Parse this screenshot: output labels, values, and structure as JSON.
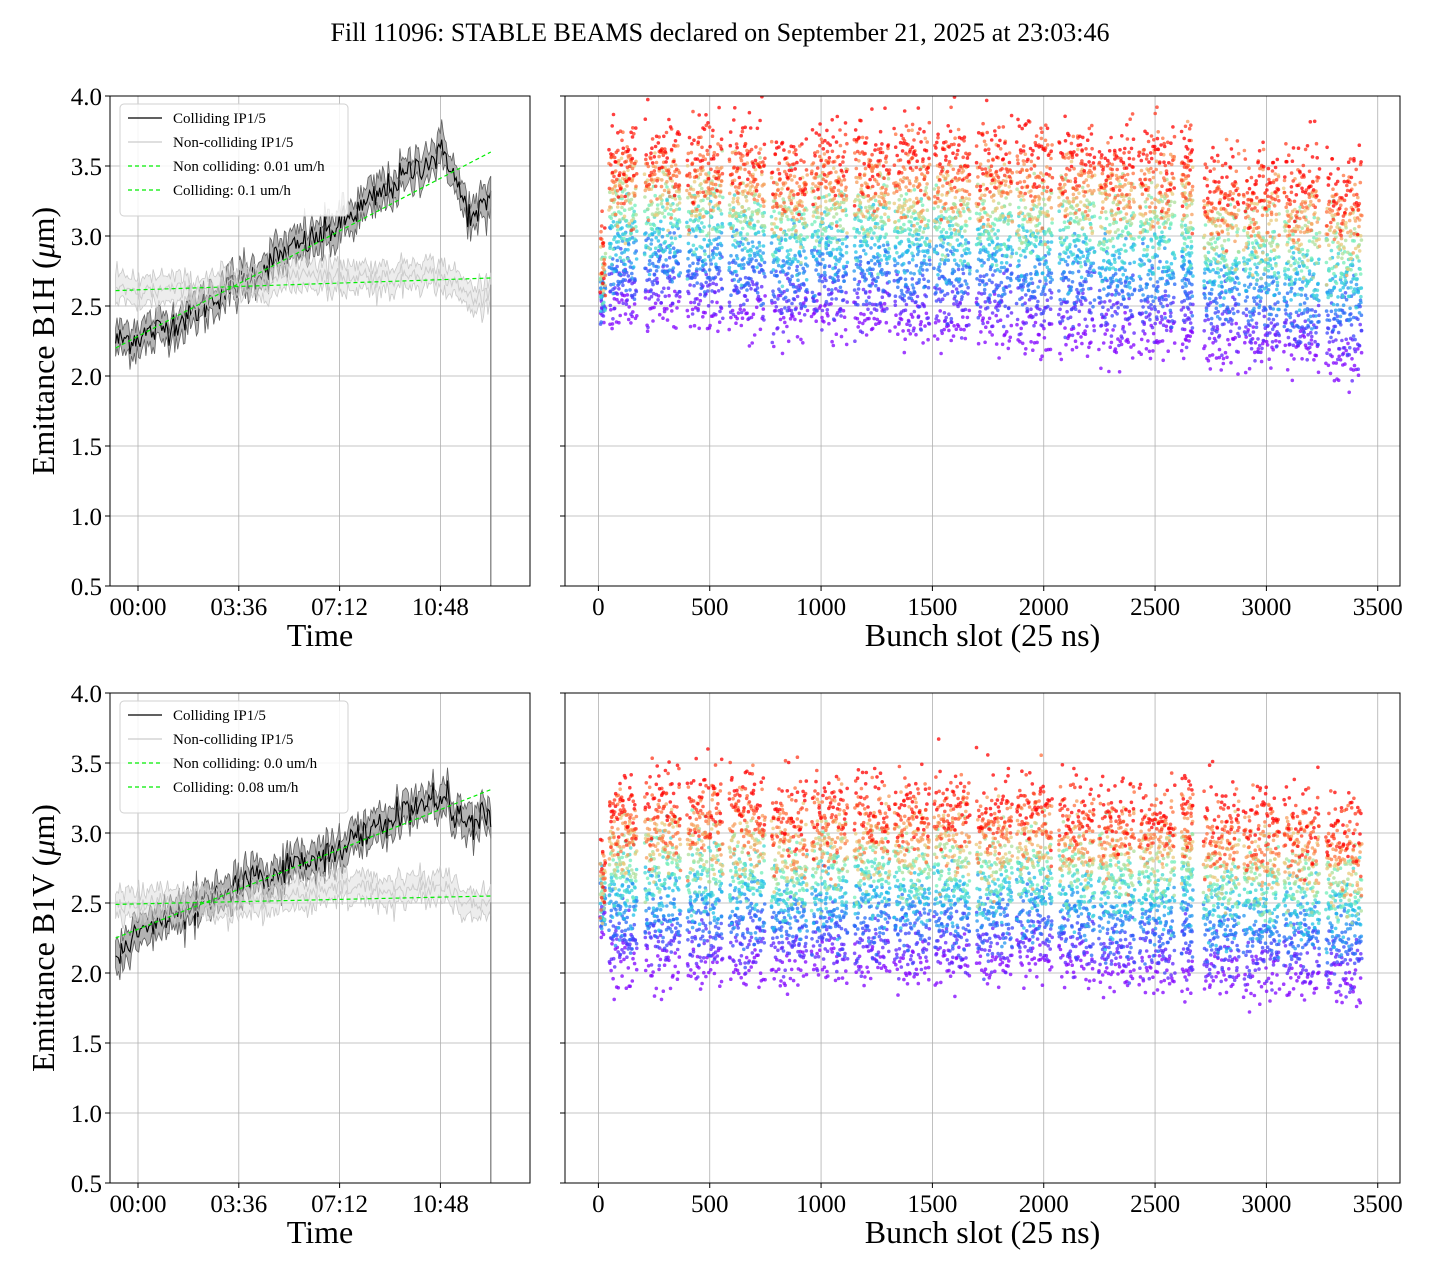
{
  "figure": {
    "title": "Fill 11096: STABLE BEAMS declared on September 21, 2025 at 23:03:46"
  },
  "chart_data": [
    {
      "id": "b1h-time",
      "type": "line",
      "xlabel": "Time",
      "ylabel": "Emittance B1H (μm)",
      "ylabel_base": "Emittance B1H (",
      "ylabel_unit_symbol": "μ",
      "ylabel_unit_rest": "m)",
      "x_unit": "hours",
      "xlim": [
        -1.0,
        14.0
      ],
      "ylim": [
        0.5,
        4.0
      ],
      "xticks": [
        0,
        3.6,
        7.2,
        10.8
      ],
      "xtick_labels": [
        "00:00",
        "03:36",
        "07:12",
        "10:48"
      ],
      "yticks": [
        0.5,
        1.0,
        1.5,
        2.0,
        2.5,
        3.0,
        3.5,
        4.0
      ],
      "ytick_labels": [
        "0.5",
        "1.0",
        "1.5",
        "2.0",
        "2.5",
        "3.0",
        "3.5",
        "4.0"
      ],
      "grid": true,
      "legend_position": "top-left",
      "series": [
        {
          "name": "Colliding IP1/5",
          "color": "#000000",
          "style": "solid",
          "band": true,
          "x": [
            -0.8,
            0,
            1,
            2,
            3,
            4,
            5,
            6,
            7,
            8,
            9,
            10,
            11,
            11.5,
            12,
            12.6
          ],
          "y": [
            2.25,
            2.28,
            2.35,
            2.45,
            2.6,
            2.7,
            2.85,
            2.95,
            3.05,
            3.2,
            3.35,
            3.5,
            3.6,
            3.3,
            3.1,
            3.3
          ]
        },
        {
          "name": "Non-colliding IP1/5",
          "color": "#cccccc",
          "style": "solid",
          "band": true,
          "x": [
            -0.8,
            0,
            1,
            2,
            3,
            4,
            5,
            6,
            7,
            8,
            9,
            10,
            11,
            12,
            12.6
          ],
          "y": [
            2.6,
            2.6,
            2.62,
            2.6,
            2.65,
            2.65,
            2.7,
            2.75,
            2.7,
            2.72,
            2.7,
            2.75,
            2.7,
            2.55,
            2.6
          ]
        },
        {
          "name": "Non colliding: 0.01 um/h",
          "color": "#00ee00",
          "style": "dashed",
          "band": false,
          "x": [
            -0.8,
            12.6
          ],
          "y": [
            2.61,
            2.7
          ]
        },
        {
          "name": "Colliding: 0.1 um/h",
          "color": "#00ee00",
          "style": "dashed",
          "band": false,
          "x": [
            -0.8,
            12.6
          ],
          "y": [
            2.2,
            3.6
          ]
        }
      ]
    },
    {
      "id": "b1h-bunch",
      "type": "scatter",
      "xlabel": "Bunch slot (25 ns)",
      "ylabel": "",
      "xlim": [
        -150,
        3600
      ],
      "ylim": [
        0.5,
        4.0
      ],
      "xticks": [
        0,
        500,
        1000,
        1500,
        2000,
        2500,
        3000,
        3500
      ],
      "xtick_labels": [
        "0",
        "500",
        "1000",
        "1500",
        "2000",
        "2500",
        "3000",
        "3500"
      ],
      "yticks": [
        0.5,
        1.0,
        1.5,
        2.0,
        2.5,
        3.0,
        3.5,
        4.0
      ],
      "grid": true,
      "color_scale": "rainbow (purple = start of fill, red = end of fill)",
      "trains": [
        {
          "start": 10,
          "end": 30,
          "emittance_start": 2.4,
          "emittance_end": 2.9
        },
        {
          "start": 50,
          "end": 170,
          "emittance_start": 2.45,
          "emittance_end": 3.6
        },
        {
          "start": 210,
          "end": 370,
          "emittance_start": 2.5,
          "emittance_end": 3.6
        },
        {
          "start": 400,
          "end": 560,
          "emittance_start": 2.45,
          "emittance_end": 3.6
        },
        {
          "start": 590,
          "end": 750,
          "emittance_start": 2.45,
          "emittance_end": 3.6
        },
        {
          "start": 780,
          "end": 940,
          "emittance_start": 2.4,
          "emittance_end": 3.5
        },
        {
          "start": 960,
          "end": 1120,
          "emittance_start": 2.4,
          "emittance_end": 3.6
        },
        {
          "start": 1150,
          "end": 1310,
          "emittance_start": 2.4,
          "emittance_end": 3.6
        },
        {
          "start": 1330,
          "end": 1490,
          "emittance_start": 2.35,
          "emittance_end": 3.6
        },
        {
          "start": 1510,
          "end": 1670,
          "emittance_start": 2.35,
          "emittance_end": 3.6
        },
        {
          "start": 1700,
          "end": 1860,
          "emittance_start": 2.35,
          "emittance_end": 3.6
        },
        {
          "start": 1880,
          "end": 2040,
          "emittance_start": 2.3,
          "emittance_end": 3.6
        },
        {
          "start": 2070,
          "end": 2230,
          "emittance_start": 2.3,
          "emittance_end": 3.6
        },
        {
          "start": 2250,
          "end": 2410,
          "emittance_start": 2.25,
          "emittance_end": 3.6
        },
        {
          "start": 2430,
          "end": 2590,
          "emittance_start": 2.25,
          "emittance_end": 3.6
        },
        {
          "start": 2620,
          "end": 2670,
          "emittance_start": 2.25,
          "emittance_end": 3.6
        },
        {
          "start": 2720,
          "end": 2880,
          "emittance_start": 2.2,
          "emittance_end": 3.4
        },
        {
          "start": 2900,
          "end": 3060,
          "emittance_start": 2.2,
          "emittance_end": 3.4
        },
        {
          "start": 3080,
          "end": 3240,
          "emittance_start": 2.15,
          "emittance_end": 3.4
        },
        {
          "start": 3270,
          "end": 3430,
          "emittance_start": 2.1,
          "emittance_end": 3.35
        }
      ]
    },
    {
      "id": "b1v-time",
      "type": "line",
      "xlabel": "Time",
      "ylabel": "Emittance B1V (μm)",
      "ylabel_base": "Emittance B1V (",
      "ylabel_unit_symbol": "μ",
      "ylabel_unit_rest": "m)",
      "x_unit": "hours",
      "xlim": [
        -1.0,
        14.0
      ],
      "ylim": [
        0.5,
        4.0
      ],
      "xticks": [
        0,
        3.6,
        7.2,
        10.8
      ],
      "xtick_labels": [
        "00:00",
        "03:36",
        "07:12",
        "10:48"
      ],
      "yticks": [
        0.5,
        1.0,
        1.5,
        2.0,
        2.5,
        3.0,
        3.5,
        4.0
      ],
      "ytick_labels": [
        "0.5",
        "1.0",
        "1.5",
        "2.0",
        "2.5",
        "3.0",
        "3.5",
        "4.0"
      ],
      "grid": true,
      "legend_position": "top-left",
      "series": [
        {
          "name": "Colliding IP1/5",
          "color": "#000000",
          "style": "solid",
          "band": true,
          "x": [
            -0.8,
            0,
            1,
            2,
            3,
            4,
            5,
            6,
            7,
            8,
            9,
            10,
            11,
            11.5,
            12,
            12.6
          ],
          "y": [
            2.1,
            2.3,
            2.38,
            2.45,
            2.55,
            2.65,
            2.72,
            2.8,
            2.88,
            2.97,
            3.1,
            3.2,
            3.25,
            3.1,
            3.05,
            3.15
          ]
        },
        {
          "name": "Non-colliding IP1/5",
          "color": "#cccccc",
          "style": "solid",
          "band": true,
          "x": [
            -0.8,
            0,
            1,
            2,
            3,
            4,
            5,
            6,
            7,
            8,
            9,
            10,
            11,
            12,
            12.6
          ],
          "y": [
            2.48,
            2.5,
            2.5,
            2.5,
            2.5,
            2.52,
            2.55,
            2.56,
            2.6,
            2.62,
            2.58,
            2.6,
            2.62,
            2.48,
            2.5
          ]
        },
        {
          "name": "Non colliding: 0.0 um/h",
          "color": "#00ee00",
          "style": "dashed",
          "band": false,
          "x": [
            -0.8,
            12.6
          ],
          "y": [
            2.49,
            2.55
          ]
        },
        {
          "name": "Colliding: 0.08 um/h",
          "color": "#00ee00",
          "style": "dashed",
          "band": false,
          "x": [
            -0.8,
            12.6
          ],
          "y": [
            2.25,
            3.31
          ]
        }
      ]
    },
    {
      "id": "b1v-bunch",
      "type": "scatter",
      "xlabel": "Bunch slot (25 ns)",
      "ylabel": "",
      "xlim": [
        -150,
        3600
      ],
      "ylim": [
        0.5,
        4.0
      ],
      "xticks": [
        0,
        500,
        1000,
        1500,
        2000,
        2500,
        3000,
        3500
      ],
      "xtick_labels": [
        "0",
        "500",
        "1000",
        "1500",
        "2000",
        "2500",
        "3000",
        "3500"
      ],
      "yticks": [
        0.5,
        1.0,
        1.5,
        2.0,
        2.5,
        3.0,
        3.5,
        4.0
      ],
      "grid": true,
      "color_scale": "rainbow (purple = start of fill, red = end of fill)",
      "trains": [
        {
          "start": 10,
          "end": 30,
          "emittance_start": 2.4,
          "emittance_end": 2.7
        },
        {
          "start": 50,
          "end": 170,
          "emittance_start": 2.05,
          "emittance_end": 3.2
        },
        {
          "start": 210,
          "end": 370,
          "emittance_start": 2.05,
          "emittance_end": 3.25
        },
        {
          "start": 400,
          "end": 560,
          "emittance_start": 2.05,
          "emittance_end": 3.25
        },
        {
          "start": 590,
          "end": 750,
          "emittance_start": 2.05,
          "emittance_end": 3.25
        },
        {
          "start": 780,
          "end": 940,
          "emittance_start": 2.05,
          "emittance_end": 3.15
        },
        {
          "start": 960,
          "end": 1120,
          "emittance_start": 2.05,
          "emittance_end": 3.2
        },
        {
          "start": 1150,
          "end": 1310,
          "emittance_start": 2.05,
          "emittance_end": 3.2
        },
        {
          "start": 1330,
          "end": 1490,
          "emittance_start": 2.05,
          "emittance_end": 3.2
        },
        {
          "start": 1510,
          "end": 1670,
          "emittance_start": 2.05,
          "emittance_end": 3.2
        },
        {
          "start": 1700,
          "end": 1860,
          "emittance_start": 2.05,
          "emittance_end": 3.2
        },
        {
          "start": 1880,
          "end": 2040,
          "emittance_start": 2.1,
          "emittance_end": 3.2
        },
        {
          "start": 2070,
          "end": 2230,
          "emittance_start": 2.05,
          "emittance_end": 3.15
        },
        {
          "start": 2250,
          "end": 2410,
          "emittance_start": 2.0,
          "emittance_end": 3.15
        },
        {
          "start": 2430,
          "end": 2590,
          "emittance_start": 2.0,
          "emittance_end": 3.15
        },
        {
          "start": 2620,
          "end": 2670,
          "emittance_start": 2.0,
          "emittance_end": 3.25
        },
        {
          "start": 2720,
          "end": 2880,
          "emittance_start": 1.95,
          "emittance_end": 3.1
        },
        {
          "start": 2900,
          "end": 3060,
          "emittance_start": 1.95,
          "emittance_end": 3.1
        },
        {
          "start": 3080,
          "end": 3240,
          "emittance_start": 1.95,
          "emittance_end": 3.1
        },
        {
          "start": 3270,
          "end": 3430,
          "emittance_start": 1.9,
          "emittance_end": 3.05
        }
      ]
    }
  ]
}
